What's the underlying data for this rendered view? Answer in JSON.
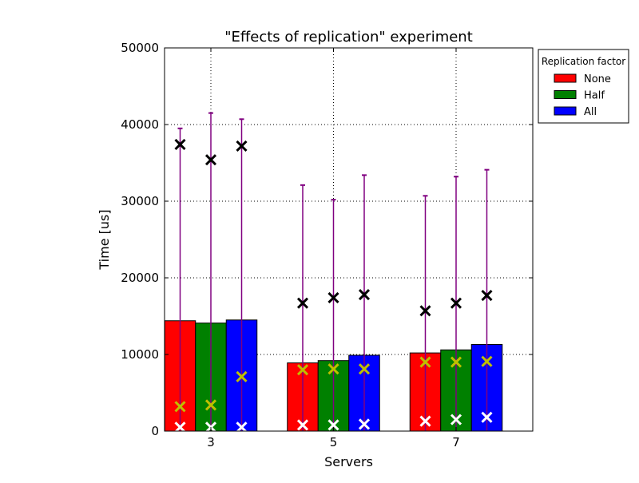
{
  "chart_data": {
    "type": "bar",
    "title": "\"Effects of replication\" experiment",
    "xlabel": "Servers",
    "ylabel": "Time [us]",
    "categories": [
      "3",
      "5",
      "7"
    ],
    "ylim": [
      0,
      50000
    ],
    "yticks": [
      0,
      10000,
      20000,
      30000,
      40000,
      50000
    ],
    "grid": true,
    "legend": {
      "title": "Replication factor",
      "placement": "outside-top-right"
    },
    "error_bar_color": "#800080",
    "series": [
      {
        "name": "None",
        "color": "#ff0000",
        "values": [
          14400,
          8900,
          10200
        ],
        "error_upper": [
          39500,
          32100,
          30700
        ],
        "marker_black": [
          37400,
          16700,
          15700
        ],
        "marker_yellow": [
          3200,
          8000,
          9000
        ],
        "marker_white": [
          500,
          800,
          1300
        ]
      },
      {
        "name": "Half",
        "color": "#008000",
        "values": [
          14100,
          9200,
          10600
        ],
        "error_upper": [
          41500,
          30200,
          33200
        ],
        "marker_black": [
          35400,
          17400,
          16700
        ],
        "marker_yellow": [
          3400,
          8100,
          9000
        ],
        "marker_white": [
          500,
          800,
          1500
        ]
      },
      {
        "name": "All",
        "color": "#0000ff",
        "values": [
          14500,
          9900,
          11300
        ],
        "error_upper": [
          40700,
          33400,
          34100
        ],
        "marker_black": [
          37200,
          17800,
          17700
        ],
        "marker_yellow": [
          7100,
          8100,
          9100
        ],
        "marker_white": [
          500,
          900,
          1800
        ]
      }
    ]
  }
}
